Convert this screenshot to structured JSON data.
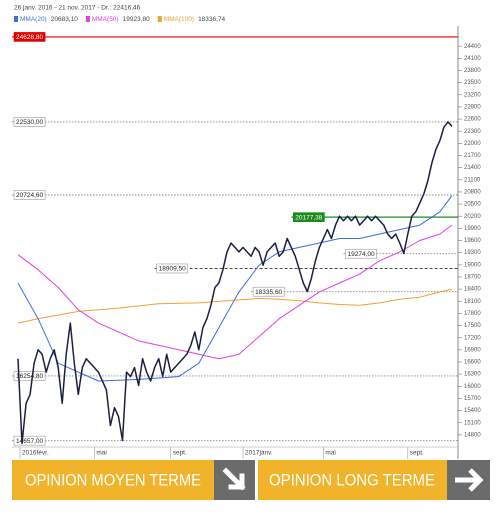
{
  "chart_data": {
    "type": "line",
    "header": "26 janv. 2016 - 21 nov. 2017 - Dr.: 22416,46",
    "xlim": [
      -1.5,
      109.5
    ],
    "xticks": [
      {
        "value": 0.5,
        "label": "2016févr."
      },
      {
        "value": 19,
        "label": "mai"
      },
      {
        "value": 38,
        "label": "sept."
      },
      {
        "value": 56,
        "label": "2017janv."
      },
      {
        "value": 76,
        "label": "mai"
      },
      {
        "value": 97,
        "label": "sept."
      }
    ],
    "ylim": [
      14500,
      24800
    ],
    "yticks": [
      14800,
      15100,
      15400,
      15700,
      16000,
      16300,
      16600,
      16900,
      17200,
      17500,
      17800,
      18100,
      18400,
      18700,
      19000,
      19300,
      19600,
      19900,
      20200,
      20500,
      20800,
      21100,
      21400,
      21700,
      22000,
      22300,
      22600,
      22900,
      23200,
      23500,
      23800,
      24100,
      24400
    ],
    "series": [
      {
        "color": "#1b2040",
        "x": [
          0,
          1,
          2,
          3,
          4,
          5,
          6,
          7,
          8,
          9,
          10,
          11,
          12,
          13,
          14,
          15,
          16,
          17,
          18,
          19,
          20,
          21,
          22,
          23,
          24,
          25,
          26,
          27,
          28,
          29,
          30,
          31,
          32,
          33,
          34,
          35,
          36,
          37,
          38,
          39,
          40,
          41,
          42,
          43,
          44,
          45,
          46,
          47,
          48,
          49,
          50,
          51,
          52,
          53,
          54,
          55,
          56,
          57,
          58,
          59,
          60,
          61,
          62,
          63,
          64,
          65,
          66,
          67,
          68,
          69,
          70,
          71,
          72,
          73,
          74,
          75,
          76,
          77,
          78,
          79,
          80,
          81,
          82,
          83,
          84,
          85,
          86,
          87,
          88,
          89,
          90,
          91,
          92,
          93,
          94,
          95,
          96,
          97,
          98,
          99,
          100,
          101,
          102,
          103,
          104,
          105,
          106,
          107,
          108
        ],
        "values": [
          16680,
          14590,
          15580,
          15800,
          16570,
          16900,
          16790,
          16350,
          16680,
          16900,
          16460,
          15580,
          16790,
          17560,
          16570,
          15800,
          16460,
          16680,
          16570,
          16460,
          16350,
          16130,
          15910,
          15030,
          15470,
          15250,
          14660,
          16350,
          16240,
          16460,
          16020,
          16680,
          16350,
          16130,
          16460,
          16680,
          16240,
          16790,
          16350,
          16460,
          16570,
          16680,
          16790,
          17010,
          17340,
          16900,
          17450,
          17670,
          18000,
          18440,
          18550,
          18880,
          19320,
          19540,
          19430,
          19320,
          19430,
          19320,
          19210,
          19430,
          19320,
          18990,
          19320,
          19430,
          19540,
          19210,
          19320,
          19650,
          19430,
          19210,
          18880,
          18550,
          18340,
          18660,
          19100,
          19430,
          19650,
          19870,
          19650,
          19980,
          20200,
          20090,
          20200,
          20090,
          20200,
          19980,
          20090,
          20200,
          20090,
          20200,
          20090,
          19980,
          19760,
          19650,
          19760,
          19540,
          19280,
          19760,
          20200,
          20310,
          20530,
          20750,
          21080,
          21520,
          21850,
          22070,
          22400,
          22530,
          22420
        ]
      },
      {
        "name": "MMA(20)",
        "legend_value": "20683,10",
        "color": "#3a6fd8",
        "x": [
          0,
          5,
          10,
          20,
          30,
          40,
          45,
          50,
          55,
          60,
          65,
          70,
          75,
          80,
          85,
          90,
          95,
          100,
          105,
          108
        ],
        "values": [
          18550,
          17670,
          16570,
          16130,
          16170,
          16240,
          16570,
          17450,
          18330,
          18990,
          19320,
          19430,
          19540,
          19650,
          19650,
          19760,
          19870,
          19980,
          20310,
          20710
        ]
      },
      {
        "name": "MMA(50)",
        "legend_value": "19923,80",
        "color": "#e040e0",
        "x": [
          0,
          5,
          10,
          15,
          20,
          30,
          40,
          50,
          55,
          60,
          65,
          70,
          75,
          80,
          85,
          90,
          95,
          100,
          105,
          108
        ],
        "values": [
          19250,
          18880,
          18440,
          17890,
          17560,
          17120,
          16900,
          16680,
          16790,
          17230,
          17670,
          18000,
          18330,
          18550,
          18770,
          19100,
          19320,
          19600,
          19760,
          19980
        ]
      },
      {
        "name": "MMA(100)",
        "legend_value": "18336,74",
        "color": "#f0a030",
        "x": [
          0,
          5,
          15,
          25,
          35,
          45,
          52,
          60,
          65,
          70,
          75,
          80,
          85,
          90,
          95,
          100,
          105,
          108
        ],
        "values": [
          17560,
          17670,
          17850,
          17930,
          18040,
          18060,
          18110,
          18170,
          18150,
          18110,
          18060,
          18020,
          18000,
          18060,
          18150,
          18200,
          18330,
          18400
        ]
      }
    ],
    "levels": [
      {
        "value": 24628.8,
        "label": "24628,80",
        "color": "#e00000",
        "style": "solid"
      },
      {
        "value": 22530,
        "label": "22530,00",
        "color": "#888888",
        "style": "dotted"
      },
      {
        "value": 20724.6,
        "label": "20724,60",
        "color": "#888888",
        "style": "dotted"
      },
      {
        "value": 20177.38,
        "label": "20177,38",
        "color": "#1a8a1a",
        "style": "solid",
        "from": 68
      },
      {
        "value": 19274,
        "label": "19274,00",
        "color": "#888888",
        "style": "dotted",
        "from": 81
      },
      {
        "value": 18909.5,
        "label": "18909,50",
        "color": "#333333",
        "style": "dashed",
        "from": 34
      },
      {
        "value": 18335.6,
        "label": "18335,60",
        "color": "#888888",
        "style": "dotted",
        "from": 58
      },
      {
        "value": 16254.8,
        "label": "16254,80",
        "color": "#888888",
        "style": "dotted"
      },
      {
        "value": 14657,
        "label": "14657,00",
        "color": "#888888",
        "style": "dotted"
      }
    ]
  },
  "buttons": [
    {
      "label": "OPINION MOYEN TERME"
    },
    {
      "label": "OPINION LONG TERME"
    }
  ]
}
